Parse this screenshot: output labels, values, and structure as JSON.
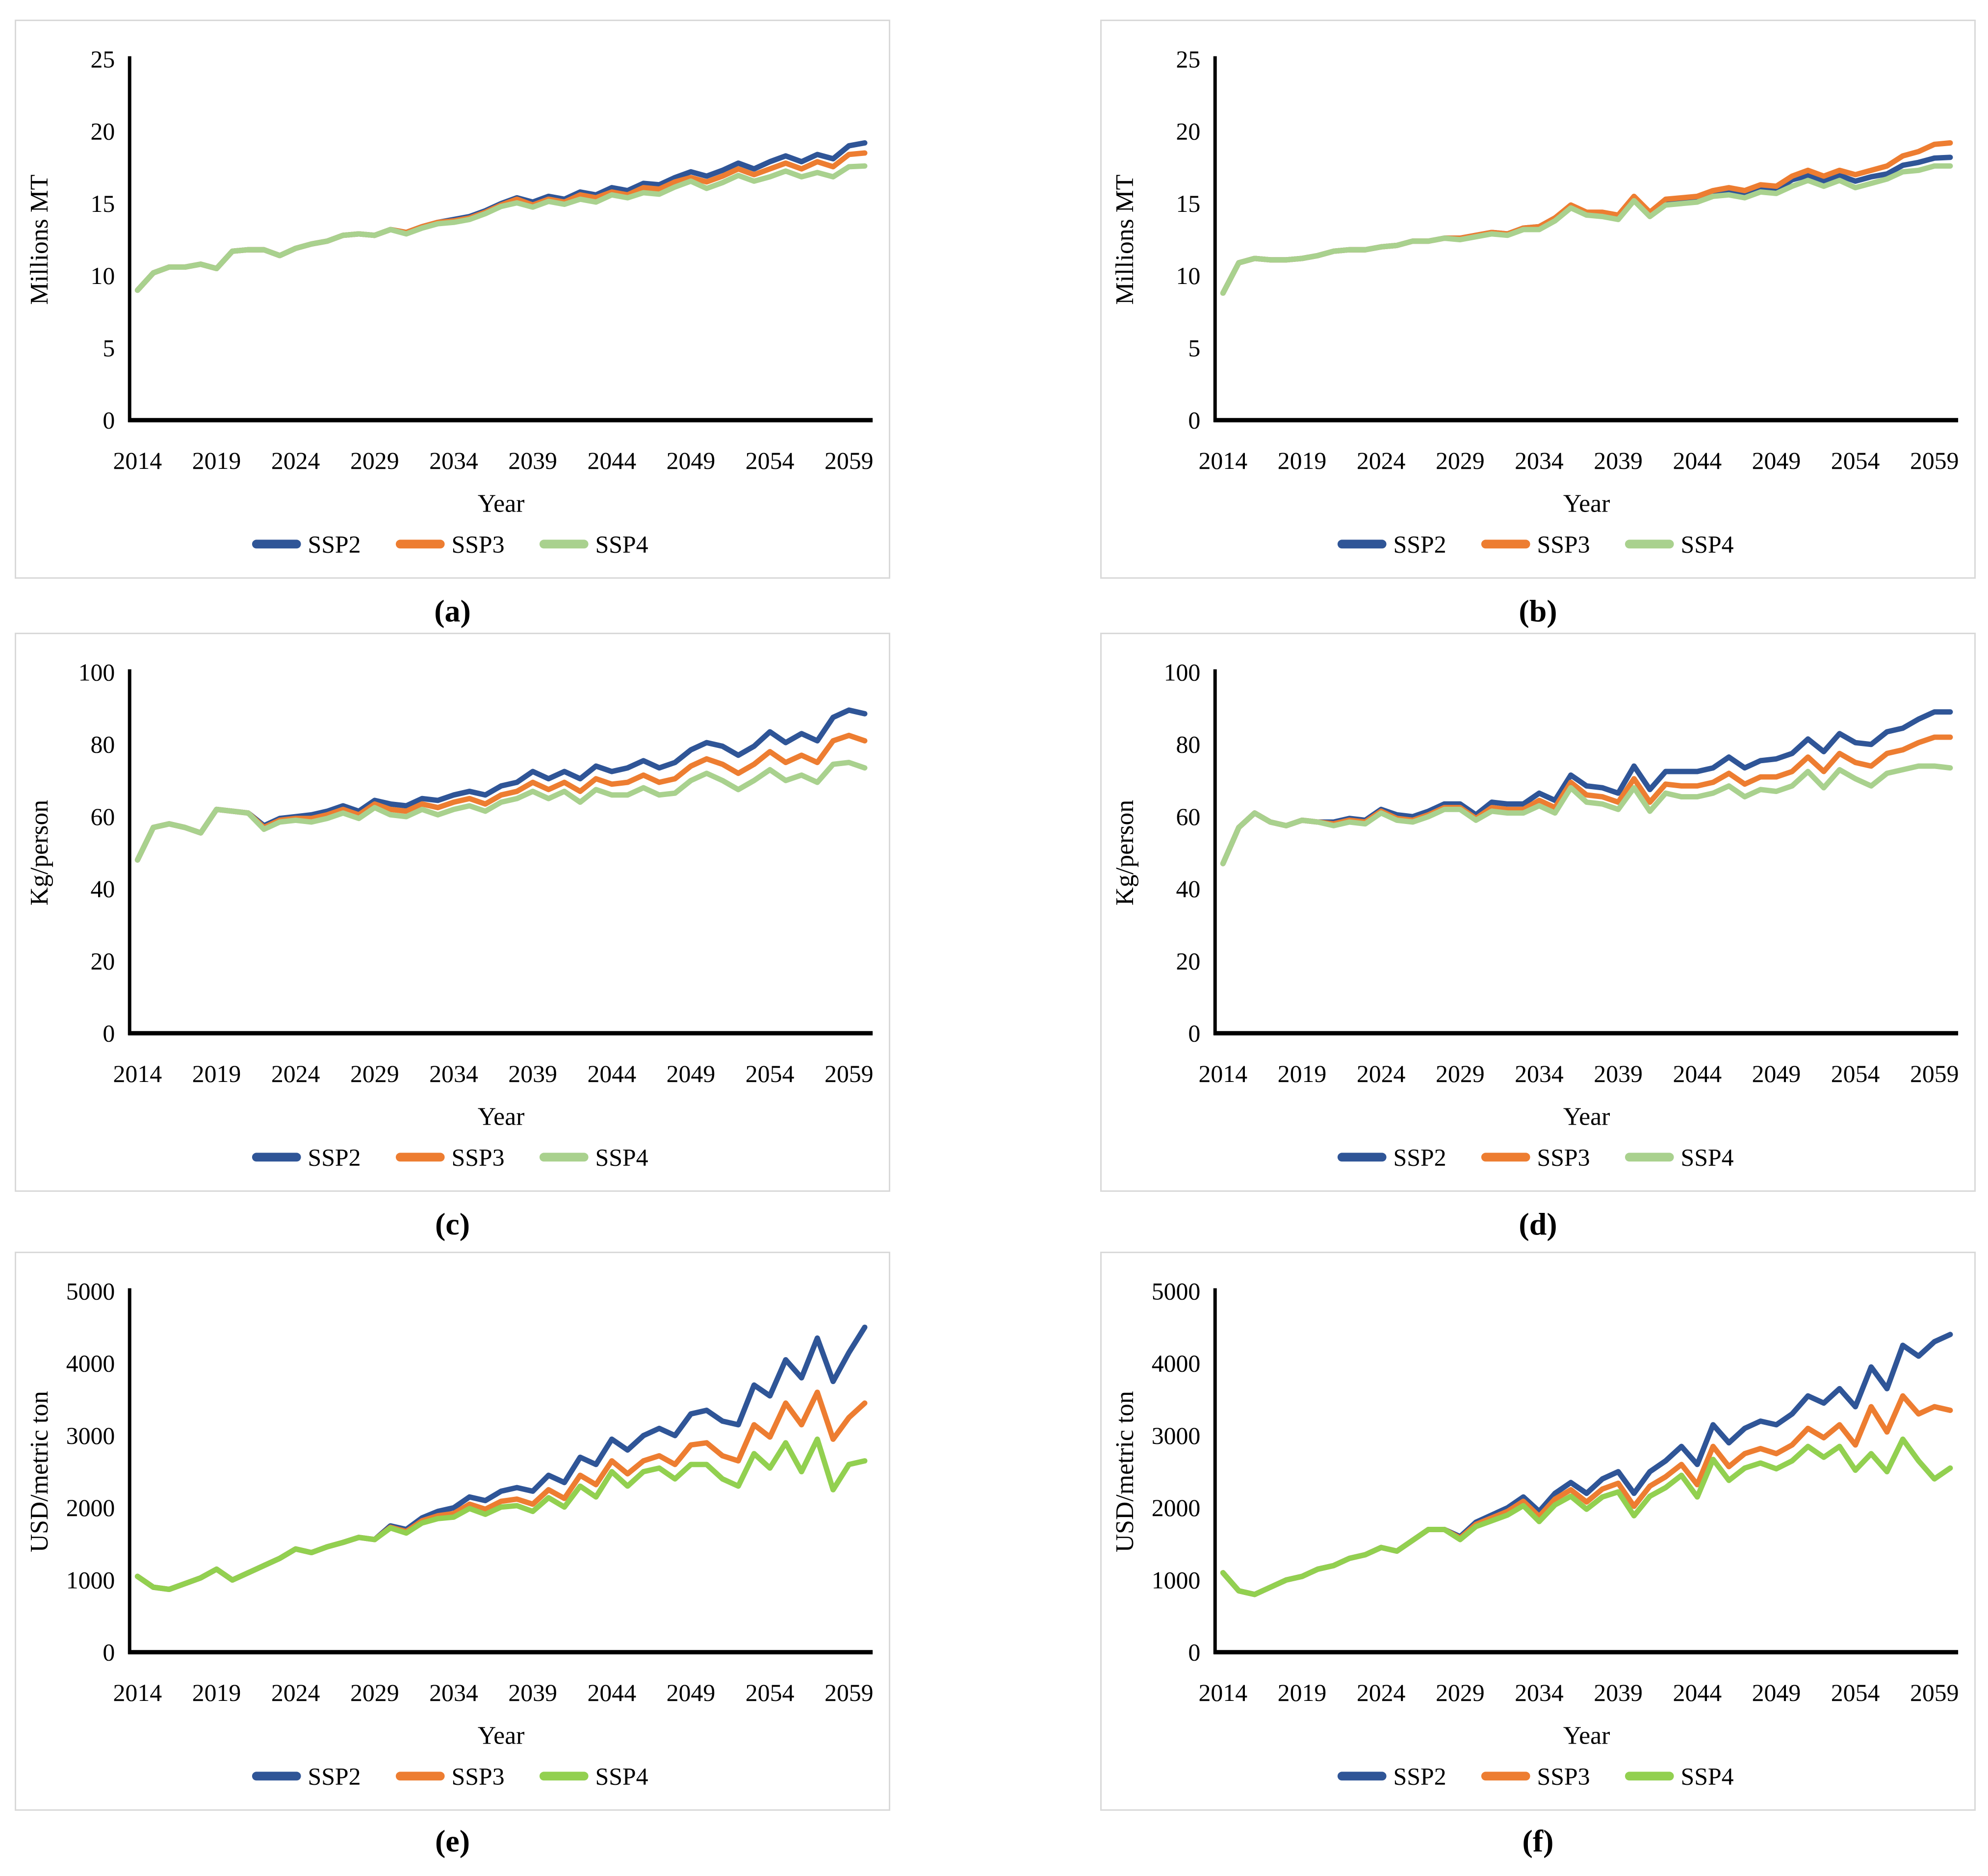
{
  "page": {
    "background": "#ffffff",
    "panel_border_color": "#d9d9d9",
    "x_axis_label": "Year",
    "legend_labels": [
      "SSP2",
      "SSP3",
      "SSP4"
    ],
    "colors": {
      "SSP2": "#2F5597",
      "SSP3": "#ED7D31",
      "SSP4_soft": "#A9D18E",
      "SSP4_bright": "#92D050"
    }
  },
  "years": [
    2014,
    2015,
    2016,
    2017,
    2018,
    2019,
    2020,
    2021,
    2022,
    2023,
    2024,
    2025,
    2026,
    2027,
    2028,
    2029,
    2030,
    2031,
    2032,
    2033,
    2034,
    2035,
    2036,
    2037,
    2038,
    2039,
    2040,
    2041,
    2042,
    2043,
    2044,
    2045,
    2046,
    2047,
    2048,
    2049,
    2050,
    2051,
    2052,
    2053,
    2054,
    2055,
    2056,
    2057,
    2058,
    2059,
    2060
  ],
  "x_tick_labels": [
    "2014",
    "2019",
    "2024",
    "2029",
    "2034",
    "2039",
    "2044",
    "2049",
    "2054",
    "2059"
  ],
  "chart_data": [
    {
      "type": "line",
      "caption": "(a)",
      "xlabel": "Year",
      "ylabel": "Millions MT",
      "ylim": [
        0,
        25
      ],
      "ytick_step": 5,
      "grid": false,
      "legend_position": "bottom",
      "series": [
        {
          "name": "SSP2",
          "color": "#2F5597",
          "values": [
            9.0,
            10.2,
            10.6,
            10.6,
            10.8,
            10.5,
            11.7,
            11.8,
            11.8,
            11.4,
            11.9,
            12.2,
            12.4,
            12.8,
            12.9,
            12.8,
            13.2,
            13.0,
            13.4,
            13.7,
            13.9,
            14.1,
            14.5,
            15.0,
            15.4,
            15.1,
            15.5,
            15.3,
            15.8,
            15.6,
            16.1,
            15.9,
            16.4,
            16.3,
            16.8,
            17.2,
            16.9,
            17.3,
            17.8,
            17.4,
            17.9,
            18.3,
            17.9,
            18.4,
            18.1,
            19.0,
            19.2
          ]
        },
        {
          "name": "SSP3",
          "color": "#ED7D31",
          "values": [
            9.0,
            10.2,
            10.6,
            10.6,
            10.8,
            10.5,
            11.7,
            11.8,
            11.8,
            11.4,
            11.9,
            12.2,
            12.4,
            12.8,
            12.9,
            12.8,
            13.2,
            13.0,
            13.4,
            13.7,
            13.8,
            14.0,
            14.4,
            14.9,
            15.3,
            14.9,
            15.3,
            15.1,
            15.6,
            15.4,
            15.8,
            15.6,
            16.1,
            16.0,
            16.5,
            16.8,
            16.5,
            16.9,
            17.4,
            17.0,
            17.4,
            17.8,
            17.4,
            17.9,
            17.55,
            18.4,
            18.5
          ]
        },
        {
          "name": "SSP4",
          "color": "#A9D18E",
          "values": [
            9.0,
            10.2,
            10.6,
            10.6,
            10.8,
            10.5,
            11.7,
            11.8,
            11.8,
            11.4,
            11.9,
            12.2,
            12.4,
            12.8,
            12.9,
            12.8,
            13.2,
            12.9,
            13.3,
            13.6,
            13.7,
            13.9,
            14.3,
            14.8,
            15.05,
            14.75,
            15.15,
            14.95,
            15.3,
            15.1,
            15.6,
            15.4,
            15.75,
            15.65,
            16.15,
            16.55,
            16.05,
            16.45,
            16.95,
            16.55,
            16.85,
            17.25,
            16.85,
            17.15,
            16.85,
            17.55,
            17.6
          ]
        }
      ]
    },
    {
      "type": "line",
      "caption": "(b)",
      "xlabel": "Year",
      "ylabel": "Millions MT",
      "ylim": [
        0,
        25
      ],
      "ytick_step": 5,
      "grid": false,
      "legend_position": "bottom",
      "series": [
        {
          "name": "SSP2",
          "color": "#2F5597",
          "values": [
            8.8,
            10.9,
            11.2,
            11.1,
            11.1,
            11.2,
            11.4,
            11.7,
            11.8,
            11.8,
            12.0,
            12.1,
            12.4,
            12.4,
            12.6,
            12.6,
            12.8,
            13.0,
            12.9,
            13.3,
            13.4,
            14.0,
            14.8,
            14.3,
            14.3,
            14.1,
            15.4,
            14.3,
            15.15,
            15.25,
            15.35,
            15.75,
            15.95,
            15.75,
            16.05,
            15.95,
            16.65,
            16.95,
            16.55,
            16.95,
            16.55,
            16.85,
            17.05,
            17.65,
            17.85,
            18.15,
            18.2
          ]
        },
        {
          "name": "SSP3",
          "color": "#ED7D31",
          "values": [
            8.8,
            10.9,
            11.2,
            11.1,
            11.1,
            11.2,
            11.4,
            11.7,
            11.8,
            11.8,
            12.0,
            12.1,
            12.4,
            12.4,
            12.6,
            12.6,
            12.8,
            13.0,
            12.9,
            13.3,
            13.4,
            14.0,
            14.9,
            14.4,
            14.4,
            14.2,
            15.5,
            14.4,
            15.3,
            15.4,
            15.5,
            15.9,
            16.1,
            15.9,
            16.3,
            16.2,
            16.9,
            17.3,
            16.9,
            17.3,
            17.0,
            17.3,
            17.6,
            18.3,
            18.6,
            19.1,
            19.2
          ]
        },
        {
          "name": "SSP4",
          "color": "#A9D18E",
          "values": [
            8.8,
            10.9,
            11.2,
            11.1,
            11.1,
            11.2,
            11.4,
            11.7,
            11.8,
            11.8,
            12.0,
            12.1,
            12.4,
            12.4,
            12.6,
            12.5,
            12.7,
            12.9,
            12.8,
            13.2,
            13.2,
            13.8,
            14.7,
            14.2,
            14.1,
            13.9,
            15.2,
            14.1,
            14.9,
            15.0,
            15.1,
            15.5,
            15.6,
            15.4,
            15.8,
            15.7,
            16.2,
            16.6,
            16.2,
            16.6,
            16.1,
            16.4,
            16.7,
            17.2,
            17.3,
            17.6,
            17.6
          ]
        }
      ]
    },
    {
      "type": "line",
      "caption": "(c)",
      "xlabel": "Year",
      "ylabel": "Kg/person",
      "ylim": [
        0,
        100
      ],
      "ytick_step": 20,
      "grid": false,
      "legend_position": "bottom",
      "series": [
        {
          "name": "SSP2",
          "color": "#2F5597",
          "values": [
            48,
            57,
            58,
            57,
            55.5,
            62,
            61.5,
            61,
            57.5,
            59.5,
            60,
            60.5,
            61.5,
            63,
            61.5,
            64.5,
            63.5,
            63,
            65,
            64.5,
            66,
            67,
            66,
            68.5,
            69.5,
            72.5,
            70.5,
            72.5,
            70.5,
            74,
            72.5,
            73.5,
            75.5,
            73.5,
            75,
            78.5,
            80.5,
            79.5,
            77,
            79.5,
            83.5,
            80.5,
            83,
            81,
            87.5,
            89.5,
            88.5
          ]
        },
        {
          "name": "SSP3",
          "color": "#ED7D31",
          "values": [
            48,
            57,
            58,
            57,
            55.5,
            62,
            61.5,
            61,
            57,
            59,
            59.5,
            59.5,
            60.5,
            62,
            60.5,
            63.5,
            62,
            61.5,
            63.5,
            62.5,
            64,
            65,
            63.5,
            66,
            67,
            69.5,
            67.5,
            69.5,
            67,
            70.5,
            69,
            69.5,
            71.5,
            69.5,
            70.5,
            74,
            76,
            74.5,
            72,
            74.5,
            78,
            75,
            77,
            75,
            81,
            82.5,
            81
          ]
        },
        {
          "name": "SSP4",
          "color": "#A9D18E",
          "values": [
            48,
            57,
            58,
            57,
            55.5,
            62,
            61.5,
            61,
            56.5,
            58.5,
            59,
            58.5,
            59.5,
            61,
            59.5,
            62.5,
            60.5,
            60,
            62,
            60.5,
            62,
            63,
            61.5,
            64,
            65,
            67,
            65,
            67,
            64,
            67.5,
            66,
            66,
            68,
            66,
            66.5,
            70,
            72,
            70,
            67.5,
            70,
            73,
            70,
            71.5,
            69.5,
            74.5,
            75,
            73.5
          ]
        }
      ]
    },
    {
      "type": "line",
      "caption": "(d)",
      "xlabel": "Year",
      "ylabel": "Kg/person",
      "ylim": [
        0,
        100
      ],
      "ytick_step": 20,
      "grid": false,
      "legend_position": "bottom",
      "series": [
        {
          "name": "SSP2",
          "color": "#2F5597",
          "values": [
            47,
            57,
            61,
            58.5,
            57.5,
            59,
            58.5,
            58.5,
            59.5,
            59,
            62,
            60.5,
            60,
            61.5,
            63.5,
            63.5,
            60.5,
            64,
            63.5,
            63.5,
            66.5,
            64.5,
            71.5,
            68.5,
            68,
            66.5,
            74,
            67.5,
            72.5,
            72.5,
            72.5,
            73.5,
            76.5,
            73.5,
            75.5,
            76,
            77.5,
            81.5,
            78,
            83,
            80.5,
            80,
            83.5,
            84.5,
            87,
            89,
            89
          ]
        },
        {
          "name": "SSP3",
          "color": "#ED7D31",
          "values": [
            47,
            57,
            61,
            58.5,
            57.5,
            59,
            58.5,
            58,
            59,
            58.5,
            61.5,
            59.5,
            59,
            60.5,
            62.5,
            62.5,
            59.5,
            62.5,
            62,
            62,
            64.5,
            62.5,
            69.5,
            66,
            65.5,
            64,
            70.5,
            64,
            69,
            68.5,
            68.5,
            69.5,
            72,
            69,
            71,
            71,
            72.5,
            76.5,
            72.5,
            77.5,
            75,
            74,
            77.5,
            78.5,
            80.5,
            82,
            82
          ]
        },
        {
          "name": "SSP4",
          "color": "#A9D18E",
          "values": [
            47,
            57,
            61,
            58.5,
            57.5,
            59,
            58.5,
            57.5,
            58.5,
            58,
            61,
            59,
            58.5,
            60,
            62,
            62,
            59,
            61.5,
            61,
            61,
            63,
            61,
            68,
            64,
            63.5,
            62,
            68,
            61.5,
            66.5,
            65.5,
            65.5,
            66.5,
            68.5,
            65.5,
            67.5,
            67,
            68.5,
            72.5,
            68,
            73,
            70.5,
            68.5,
            72,
            73,
            74,
            74,
            73.5
          ]
        }
      ]
    },
    {
      "type": "line",
      "caption": "(e)",
      "xlabel": "Year",
      "ylabel": "USD/metric ton",
      "ylim": [
        0,
        5000
      ],
      "ytick_step": 1000,
      "grid": false,
      "legend_position": "bottom",
      "series": [
        {
          "name": "SSP2",
          "color": "#2F5597",
          "values": [
            1050,
            900,
            870,
            950,
            1030,
            1150,
            1000,
            1100,
            1200,
            1300,
            1430,
            1380,
            1460,
            1520,
            1590,
            1560,
            1750,
            1700,
            1860,
            1950,
            2000,
            2150,
            2100,
            2230,
            2280,
            2230,
            2450,
            2350,
            2700,
            2600,
            2950,
            2800,
            3000,
            3100,
            3000,
            3300,
            3350,
            3200,
            3150,
            3700,
            3550,
            4050,
            3800,
            4350,
            3750,
            4150,
            4500
          ]
        },
        {
          "name": "SSP3",
          "color": "#ED7D31",
          "values": [
            1050,
            900,
            870,
            950,
            1030,
            1150,
            1000,
            1100,
            1200,
            1300,
            1430,
            1380,
            1460,
            1520,
            1590,
            1560,
            1730,
            1670,
            1820,
            1890,
            1920,
            2050,
            1980,
            2090,
            2120,
            2050,
            2250,
            2130,
            2450,
            2320,
            2650,
            2470,
            2650,
            2720,
            2600,
            2870,
            2900,
            2720,
            2650,
            3150,
            2980,
            3450,
            3150,
            3600,
            2950,
            3250,
            3450
          ]
        },
        {
          "name": "SSP4",
          "color": "#92D050",
          "values": [
            1050,
            900,
            870,
            950,
            1030,
            1150,
            1000,
            1100,
            1200,
            1300,
            1430,
            1380,
            1460,
            1520,
            1590,
            1560,
            1720,
            1650,
            1790,
            1850,
            1870,
            1990,
            1910,
            2010,
            2030,
            1950,
            2140,
            2010,
            2300,
            2150,
            2500,
            2300,
            2500,
            2550,
            2400,
            2600,
            2600,
            2400,
            2300,
            2750,
            2550,
            2900,
            2500,
            2950,
            2250,
            2600,
            2650
          ]
        }
      ]
    },
    {
      "type": "line",
      "caption": "(f)",
      "xlabel": "Year",
      "ylabel": "USD/metric ton",
      "ylim": [
        0,
        5000
      ],
      "ytick_step": 1000,
      "grid": false,
      "legend_position": "bottom",
      "series": [
        {
          "name": "SSP2",
          "color": "#2F5597",
          "values": [
            1100,
            850,
            800,
            900,
            1000,
            1050,
            1150,
            1200,
            1300,
            1350,
            1450,
            1400,
            1550,
            1700,
            1700,
            1600,
            1800,
            1900,
            2000,
            2150,
            1950,
            2200,
            2350,
            2200,
            2400,
            2500,
            2200,
            2500,
            2650,
            2850,
            2600,
            3150,
            2900,
            3100,
            3200,
            3150,
            3300,
            3550,
            3450,
            3650,
            3400,
            3950,
            3650,
            4250,
            4100,
            4300,
            4400
          ]
        },
        {
          "name": "SSP3",
          "color": "#ED7D31",
          "values": [
            1100,
            850,
            800,
            900,
            1000,
            1050,
            1150,
            1200,
            1300,
            1350,
            1450,
            1400,
            1550,
            1700,
            1700,
            1580,
            1770,
            1860,
            1950,
            2090,
            1880,
            2120,
            2250,
            2080,
            2260,
            2340,
            2020,
            2300,
            2430,
            2600,
            2320,
            2850,
            2570,
            2750,
            2820,
            2750,
            2870,
            3100,
            2970,
            3150,
            2870,
            3400,
            3050,
            3550,
            3300,
            3400,
            3350
          ]
        },
        {
          "name": "SSP4",
          "color": "#92D050",
          "values": [
            1100,
            850,
            800,
            900,
            1000,
            1050,
            1150,
            1200,
            1300,
            1350,
            1450,
            1400,
            1550,
            1700,
            1700,
            1560,
            1740,
            1820,
            1900,
            2030,
            1810,
            2040,
            2160,
            1980,
            2150,
            2220,
            1890,
            2160,
            2280,
            2450,
            2150,
            2670,
            2380,
            2550,
            2620,
            2540,
            2650,
            2850,
            2700,
            2850,
            2520,
            2750,
            2500,
            2950,
            2650,
            2400,
            2550
          ]
        }
      ]
    }
  ]
}
